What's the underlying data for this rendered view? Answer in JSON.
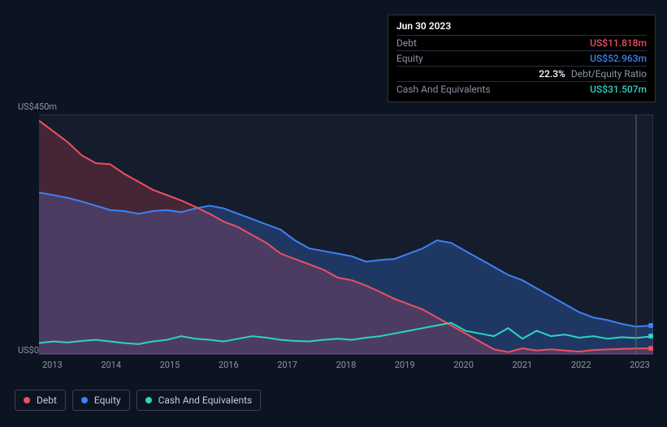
{
  "tooltip": {
    "date": "Jun 30 2023",
    "debt_label": "Debt",
    "debt_value": "US$11.818m",
    "equity_label": "Equity",
    "equity_value": "US$52.963m",
    "ratio_pct": "22.3%",
    "ratio_label": "Debt/Equity Ratio",
    "cash_label": "Cash And Equivalents",
    "cash_value": "US$31.507m"
  },
  "chart": {
    "type": "area",
    "background_color": "#151c2c",
    "page_background": "#0d1421",
    "grid_color": "#2a3142",
    "axis_text_color": "#8b93a7",
    "y_top_label": "US$450m",
    "y_bot_label": "US$0",
    "ylim": [
      0,
      450
    ],
    "xlim": [
      2013,
      2023.8
    ],
    "x_ticks": [
      "2013",
      "2014",
      "2015",
      "2016",
      "2017",
      "2018",
      "2019",
      "2020",
      "2021",
      "2022",
      "2023"
    ],
    "cursor_x": 2023.5,
    "series": {
      "debt": {
        "label": "Debt",
        "stroke": "#ef4f60",
        "fill": "#ef4f60",
        "fill_opacity": 0.22,
        "stroke_width": 2,
        "points": [
          [
            2013.0,
            440
          ],
          [
            2013.25,
            420
          ],
          [
            2013.5,
            400
          ],
          [
            2013.75,
            375
          ],
          [
            2014.0,
            360
          ],
          [
            2014.25,
            358
          ],
          [
            2014.5,
            340
          ],
          [
            2014.75,
            325
          ],
          [
            2015.0,
            310
          ],
          [
            2015.25,
            300
          ],
          [
            2015.5,
            290
          ],
          [
            2015.75,
            278
          ],
          [
            2016.0,
            265
          ],
          [
            2016.25,
            250
          ],
          [
            2016.5,
            240
          ],
          [
            2016.75,
            225
          ],
          [
            2017.0,
            210
          ],
          [
            2017.25,
            190
          ],
          [
            2017.5,
            180
          ],
          [
            2017.75,
            170
          ],
          [
            2018.0,
            160
          ],
          [
            2018.25,
            145
          ],
          [
            2018.5,
            140
          ],
          [
            2018.75,
            130
          ],
          [
            2019.0,
            118
          ],
          [
            2019.25,
            105
          ],
          [
            2019.5,
            95
          ],
          [
            2019.75,
            85
          ],
          [
            2020.0,
            70
          ],
          [
            2020.25,
            55
          ],
          [
            2020.5,
            40
          ],
          [
            2020.75,
            25
          ],
          [
            2021.0,
            10
          ],
          [
            2021.25,
            5
          ],
          [
            2021.5,
            12
          ],
          [
            2021.75,
            8
          ],
          [
            2022.0,
            10
          ],
          [
            2022.25,
            8
          ],
          [
            2022.5,
            6
          ],
          [
            2022.75,
            9
          ],
          [
            2023.0,
            10
          ],
          [
            2023.25,
            11
          ],
          [
            2023.5,
            11.8
          ],
          [
            2023.8,
            12
          ]
        ]
      },
      "equity": {
        "label": "Equity",
        "stroke": "#3b82f6",
        "fill": "#3b82f6",
        "fill_opacity": 0.28,
        "stroke_width": 2,
        "points": [
          [
            2013.0,
            305
          ],
          [
            2013.25,
            300
          ],
          [
            2013.5,
            295
          ],
          [
            2013.75,
            288
          ],
          [
            2014.0,
            280
          ],
          [
            2014.25,
            272
          ],
          [
            2014.5,
            270
          ],
          [
            2014.75,
            265
          ],
          [
            2015.0,
            270
          ],
          [
            2015.25,
            272
          ],
          [
            2015.5,
            268
          ],
          [
            2015.75,
            275
          ],
          [
            2016.0,
            280
          ],
          [
            2016.25,
            275
          ],
          [
            2016.5,
            265
          ],
          [
            2016.75,
            255
          ],
          [
            2017.0,
            245
          ],
          [
            2017.25,
            235
          ],
          [
            2017.5,
            215
          ],
          [
            2017.75,
            200
          ],
          [
            2018.0,
            195
          ],
          [
            2018.25,
            190
          ],
          [
            2018.5,
            185
          ],
          [
            2018.75,
            175
          ],
          [
            2019.0,
            178
          ],
          [
            2019.25,
            180
          ],
          [
            2019.5,
            190
          ],
          [
            2019.75,
            200
          ],
          [
            2020.0,
            215
          ],
          [
            2020.25,
            210
          ],
          [
            2020.5,
            195
          ],
          [
            2020.75,
            180
          ],
          [
            2021.0,
            165
          ],
          [
            2021.25,
            150
          ],
          [
            2021.5,
            140
          ],
          [
            2021.75,
            125
          ],
          [
            2022.0,
            110
          ],
          [
            2022.25,
            95
          ],
          [
            2022.5,
            80
          ],
          [
            2022.75,
            70
          ],
          [
            2023.0,
            65
          ],
          [
            2023.25,
            58
          ],
          [
            2023.5,
            52.9
          ],
          [
            2023.8,
            55
          ]
        ]
      },
      "cash": {
        "label": "Cash And Equivalents",
        "stroke": "#2dd4bf",
        "fill": "none",
        "fill_opacity": 0,
        "stroke_width": 2,
        "points": [
          [
            2013.0,
            22
          ],
          [
            2013.25,
            25
          ],
          [
            2013.5,
            23
          ],
          [
            2013.75,
            26
          ],
          [
            2014.0,
            28
          ],
          [
            2014.25,
            25
          ],
          [
            2014.5,
            22
          ],
          [
            2014.75,
            20
          ],
          [
            2015.0,
            25
          ],
          [
            2015.25,
            28
          ],
          [
            2015.5,
            35
          ],
          [
            2015.75,
            30
          ],
          [
            2016.0,
            28
          ],
          [
            2016.25,
            25
          ],
          [
            2016.5,
            30
          ],
          [
            2016.75,
            35
          ],
          [
            2017.0,
            32
          ],
          [
            2017.25,
            28
          ],
          [
            2017.5,
            26
          ],
          [
            2017.75,
            25
          ],
          [
            2018.0,
            28
          ],
          [
            2018.25,
            30
          ],
          [
            2018.5,
            28
          ],
          [
            2018.75,
            32
          ],
          [
            2019.0,
            35
          ],
          [
            2019.25,
            40
          ],
          [
            2019.5,
            45
          ],
          [
            2019.75,
            50
          ],
          [
            2020.0,
            55
          ],
          [
            2020.25,
            60
          ],
          [
            2020.5,
            45
          ],
          [
            2020.75,
            40
          ],
          [
            2021.0,
            35
          ],
          [
            2021.25,
            50
          ],
          [
            2021.5,
            30
          ],
          [
            2021.75,
            45
          ],
          [
            2022.0,
            35
          ],
          [
            2022.25,
            38
          ],
          [
            2022.5,
            32
          ],
          [
            2022.75,
            35
          ],
          [
            2023.0,
            30
          ],
          [
            2023.25,
            33
          ],
          [
            2023.5,
            31.5
          ],
          [
            2023.8,
            35
          ]
        ]
      }
    }
  },
  "legend": {
    "border_color": "#3a4152",
    "text_color": "#c5cbd8",
    "items": [
      {
        "label": "Debt",
        "color": "#ef4f60"
      },
      {
        "label": "Equity",
        "color": "#3b82f6"
      },
      {
        "label": "Cash And Equivalents",
        "color": "#2dd4bf"
      }
    ]
  }
}
